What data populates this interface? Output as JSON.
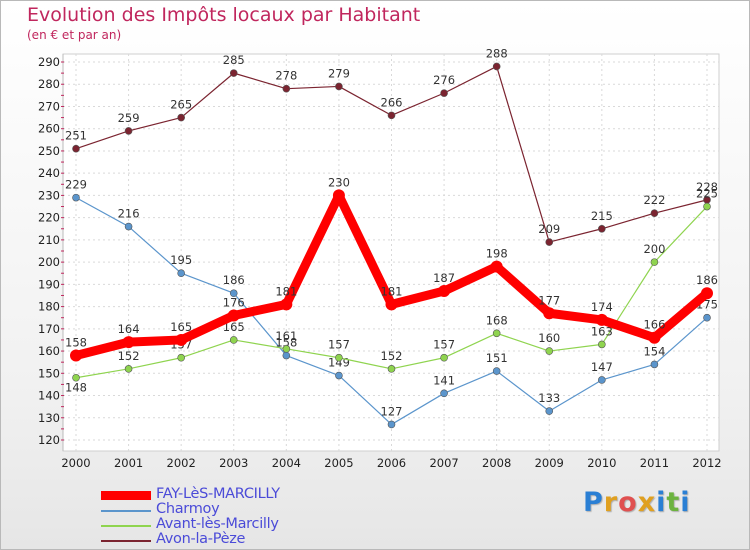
{
  "chart_data": {
    "type": "line",
    "title": "Evolution des Impôts locaux par Habitant",
    "subtitle": "(en € et par an)",
    "x": [
      "2000",
      "2001",
      "2002",
      "2003",
      "2004",
      "2005",
      "2006",
      "2007",
      "2008",
      "2009",
      "2010",
      "2011",
      "2012"
    ],
    "ylim": [
      120,
      290
    ],
    "yticks": [
      120,
      130,
      140,
      150,
      160,
      170,
      180,
      190,
      200,
      210,
      220,
      230,
      240,
      250,
      260,
      270,
      280,
      290
    ],
    "grid": true,
    "series": [
      {
        "name": "Avon-la-Pèze",
        "color": "#7b2430",
        "values": [
          251,
          259,
          265,
          285,
          278,
          279,
          266,
          276,
          288,
          209,
          215,
          222,
          228
        ]
      },
      {
        "name": "Charmoy",
        "color": "#5b95cc",
        "values": [
          229,
          216,
          195,
          186,
          158,
          149,
          127,
          141,
          151,
          133,
          147,
          154,
          175
        ]
      },
      {
        "name": "Avant-lès-Marcilly",
        "color": "#8fd44f",
        "values": [
          148,
          152,
          157,
          165,
          161,
          157,
          152,
          157,
          168,
          160,
          163,
          200,
          225
        ]
      },
      {
        "name": "FAY-LèS-MARCILLY",
        "color": "#ff0000",
        "values": [
          158,
          164,
          165,
          176,
          181,
          230,
          181,
          187,
          198,
          177,
          174,
          166,
          186
        ]
      }
    ],
    "legend": [
      "FAY-LèS-MARCILLY",
      "Charmoy",
      "Avant-lès-Marcilly",
      "Avon-la-Pèze"
    ]
  },
  "logo": {
    "letters": [
      "P",
      "r",
      "o",
      "x",
      "i",
      "t",
      "i"
    ],
    "colors": [
      "#2a7fd4",
      "#e0a020",
      "#e05050",
      "#e0a020",
      "#2a7fd4",
      "#6cb33f",
      "#2a7fd4"
    ]
  }
}
